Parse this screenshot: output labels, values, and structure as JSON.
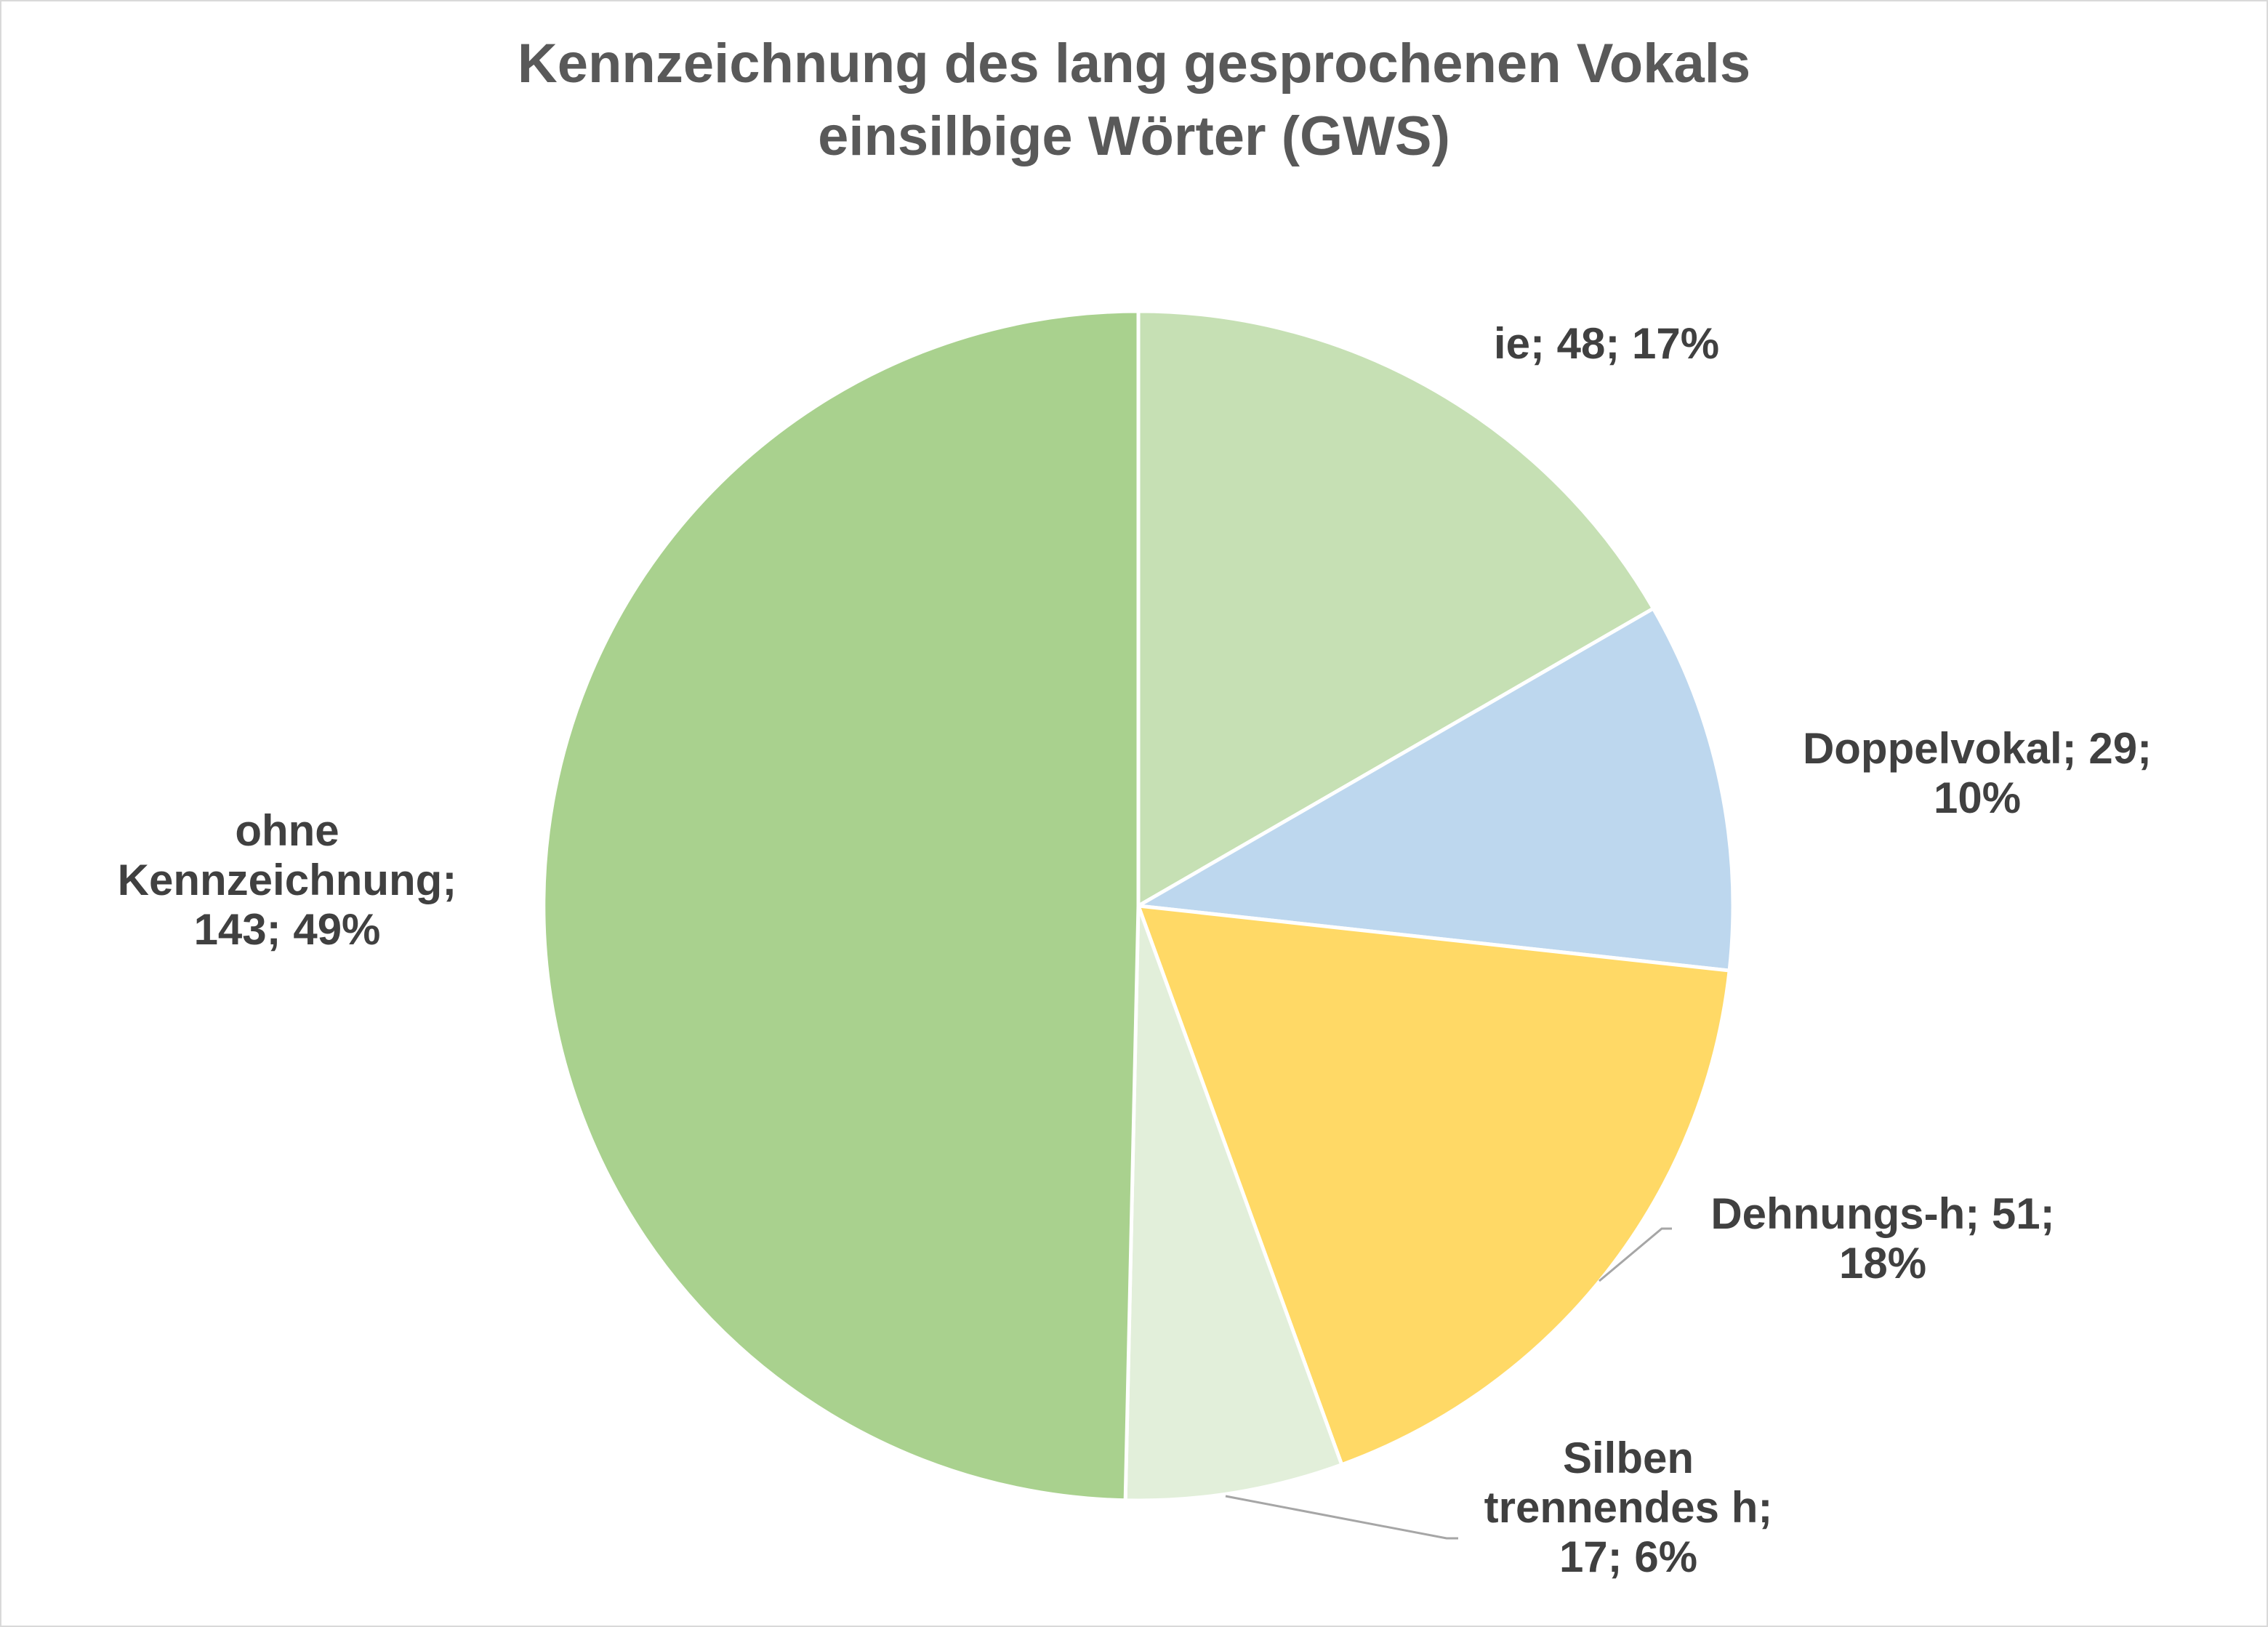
{
  "chart_data": {
    "type": "pie",
    "title_lines": [
      "Kennzeichnung des lang gesprochenen Vokals",
      "einsilbige Wörter (GWS)"
    ],
    "slices": [
      {
        "name": "ie",
        "value": 48,
        "percent": "17%",
        "color": "#c6e0b4",
        "label_lines": [
          "ie; 48; 17%"
        ]
      },
      {
        "name": "Doppelvokal",
        "value": 29,
        "percent": "10%",
        "color": "#bdd7ee",
        "label_lines": [
          "Doppelvokal; 29;",
          "10%"
        ]
      },
      {
        "name": "Dehnungs-h",
        "value": 51,
        "percent": "18%",
        "color": "#ffd966",
        "label_lines": [
          "Dehnungs-h; 51;",
          "18%"
        ]
      },
      {
        "name": "Silben trennendes h",
        "value": 17,
        "percent": "6%",
        "color": "#e2efda",
        "label_lines": [
          "Silben",
          "trennendes h;",
          "17; 6%"
        ]
      },
      {
        "name": "ohne Kennzeichnung",
        "value": 143,
        "percent": "49%",
        "color": "#a9d18e",
        "label_lines": [
          "ohne",
          "Kennzeichnung;",
          "143; 49%"
        ]
      }
    ],
    "legend": "none",
    "start": "top, clockwise"
  }
}
